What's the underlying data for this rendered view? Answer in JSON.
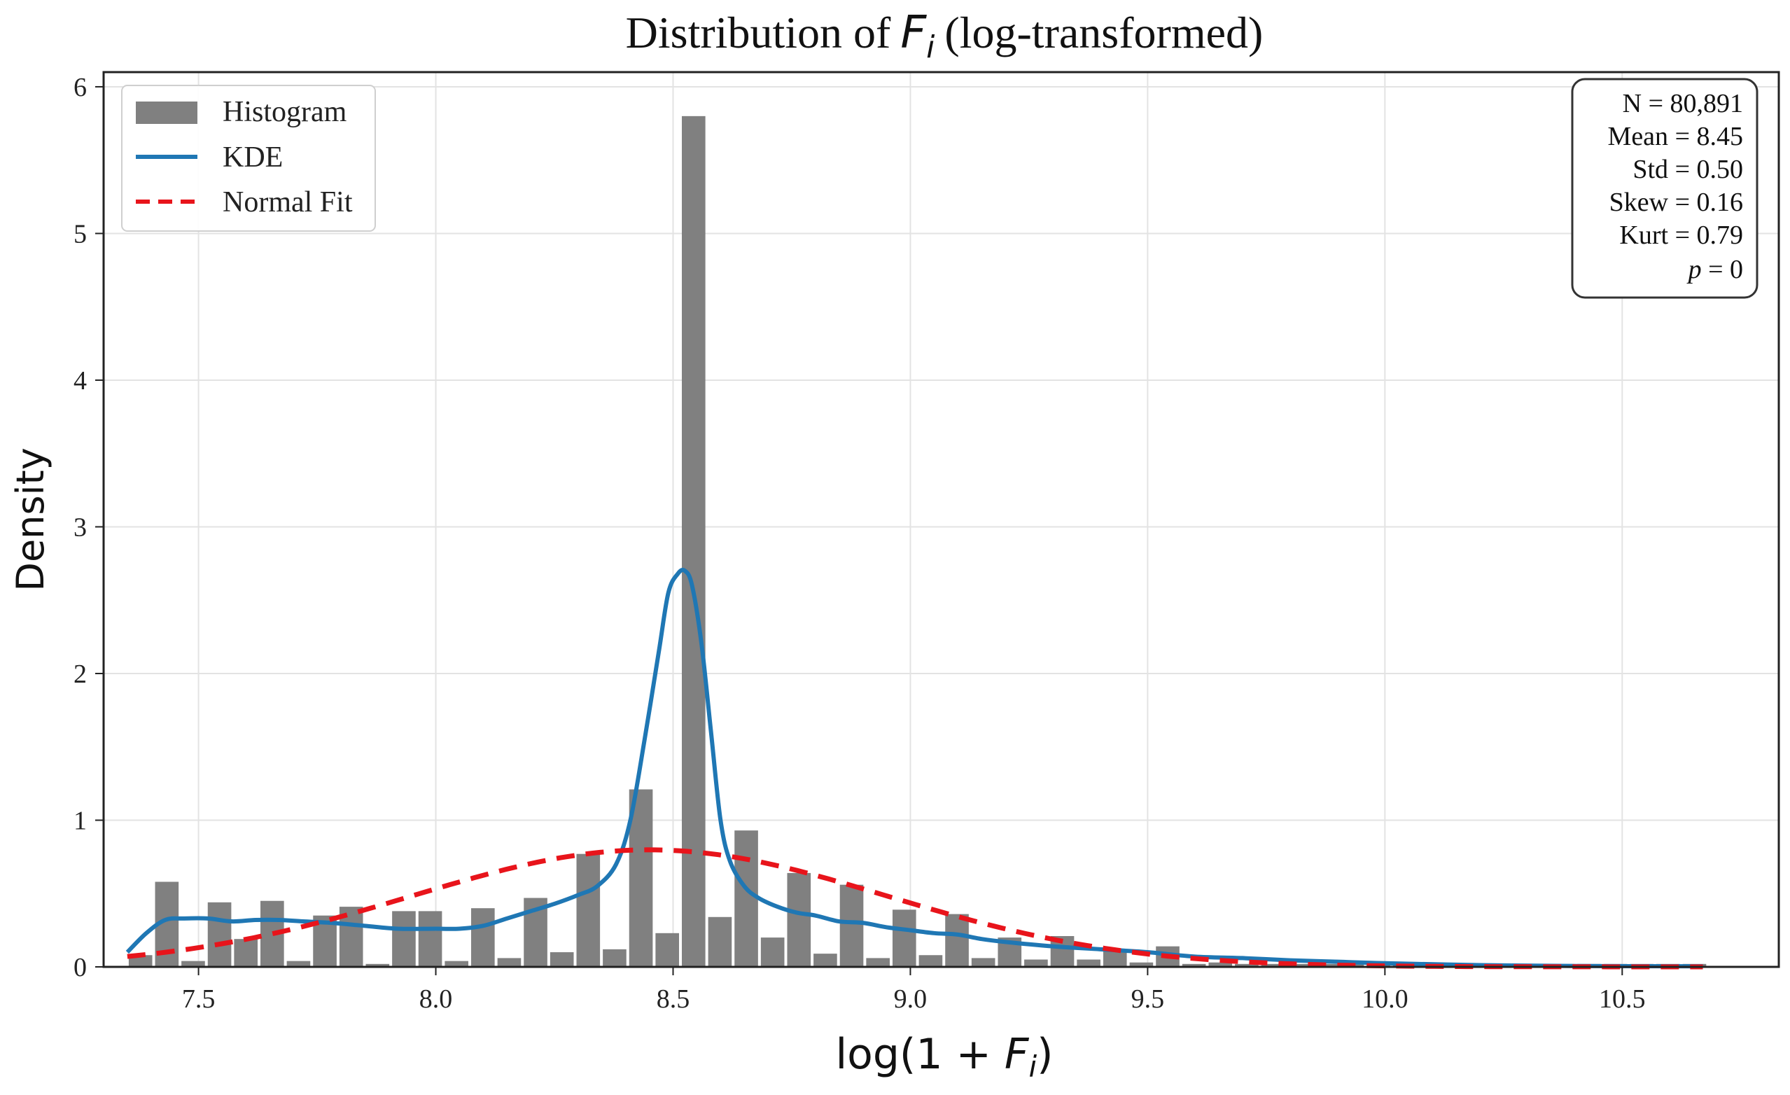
{
  "chart_data": {
    "type": "bar",
    "title": "Distribution of",
    "title_symbol": "F",
    "title_subscript": "i",
    "title_suffix": "(log-transformed)",
    "xlabel_prefix": "log(1 + ",
    "xlabel_symbol": "F",
    "xlabel_subscript": "i",
    "xlabel_suffix": ")",
    "ylabel": "Density",
    "xlim": [
      7.3,
      10.83
    ],
    "ylim": [
      0,
      6.1
    ],
    "xticks": [
      7.5,
      8.0,
      8.5,
      9.0,
      9.5,
      10.0,
      10.5
    ],
    "xtick_labels": [
      "7.5",
      "8.0",
      "8.5",
      "9.0",
      "9.5",
      "10.0",
      "10.5"
    ],
    "yticks": [
      0,
      1,
      2,
      3,
      4,
      5,
      6
    ],
    "ytick_labels": [
      "0",
      "1",
      "2",
      "3",
      "4",
      "5",
      "6"
    ],
    "grid": true,
    "legend_position": "top-left",
    "legend": [
      {
        "label": "Histogram",
        "kind": "patch",
        "color": "#808080"
      },
      {
        "label": "KDE",
        "kind": "line",
        "color": "#1f77b4"
      },
      {
        "label": "Normal Fit",
        "kind": "dashed",
        "color": "#e8141b"
      }
    ],
    "stats_box": {
      "position": "top-right",
      "lines": [
        {
          "label": "N",
          "value": "80,891"
        },
        {
          "label": "Mean",
          "value": "8.45"
        },
        {
          "label": "Std",
          "value": "0.50"
        },
        {
          "label": "Skew",
          "value": "0.16"
        },
        {
          "label": "Kurt",
          "value": "0.79"
        },
        {
          "label": "p",
          "value": "0"
        }
      ]
    },
    "histogram": {
      "name": "Histogram",
      "color": "#808080",
      "bin_start": 7.35,
      "bin_width": 0.0555,
      "values": [
        0.08,
        0.58,
        0.04,
        0.44,
        0.19,
        0.45,
        0.04,
        0.35,
        0.41,
        0.02,
        0.38,
        0.38,
        0.04,
        0.4,
        0.06,
        0.47,
        0.1,
        0.77,
        0.12,
        1.21,
        0.23,
        5.8,
        0.34,
        0.93,
        0.2,
        0.64,
        0.09,
        0.56,
        0.06,
        0.39,
        0.08,
        0.36,
        0.06,
        0.2,
        0.05,
        0.21,
        0.05,
        0.11,
        0.03,
        0.14,
        0.02,
        0.03,
        0.02,
        0.02,
        0.02,
        0.02,
        0.02,
        0.02,
        0.02,
        0.02,
        0.02,
        0.02,
        0.02,
        0.02,
        0.02,
        0.02,
        0.02,
        0.02,
        0.02,
        0.02
      ]
    },
    "series": [
      {
        "name": "KDE",
        "color": "#1f77b4",
        "x": [
          7.35,
          7.39,
          7.43,
          7.47,
          7.52,
          7.57,
          7.62,
          7.67,
          7.72,
          7.78,
          7.85,
          7.92,
          8.0,
          8.05,
          8.1,
          8.15,
          8.2,
          8.25,
          8.3,
          8.34,
          8.38,
          8.41,
          8.44,
          8.47,
          8.49,
          8.51,
          8.525,
          8.54,
          8.56,
          8.58,
          8.6,
          8.62,
          8.65,
          8.68,
          8.72,
          8.76,
          8.8,
          8.85,
          8.9,
          8.95,
          9.0,
          9.05,
          9.1,
          9.15,
          9.2,
          9.3,
          9.4,
          9.5,
          9.6,
          9.7,
          9.8,
          9.9,
          10.0,
          10.2,
          10.4,
          10.67
        ],
        "y": [
          0.1,
          0.23,
          0.32,
          0.33,
          0.33,
          0.31,
          0.32,
          0.32,
          0.31,
          0.3,
          0.28,
          0.26,
          0.26,
          0.26,
          0.28,
          0.33,
          0.38,
          0.43,
          0.49,
          0.55,
          0.7,
          1.0,
          1.55,
          2.15,
          2.55,
          2.68,
          2.7,
          2.6,
          2.2,
          1.6,
          1.0,
          0.72,
          0.55,
          0.47,
          0.41,
          0.37,
          0.35,
          0.31,
          0.3,
          0.27,
          0.25,
          0.23,
          0.22,
          0.19,
          0.17,
          0.14,
          0.12,
          0.1,
          0.07,
          0.06,
          0.045,
          0.035,
          0.025,
          0.012,
          0.006,
          0.004
        ]
      },
      {
        "name": "Normal Fit",
        "color": "#e8141b",
        "dashed": true,
        "mean": 8.45,
        "std": 0.5,
        "x_range": [
          7.35,
          10.67
        ]
      }
    ]
  }
}
